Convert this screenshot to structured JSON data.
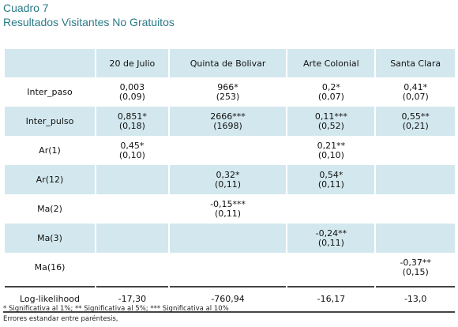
{
  "header": {
    "title": "Cuadro 7",
    "subtitle": "Resultados Visitantes No Gratuitos"
  },
  "table": {
    "columns": [
      "20 de Julio",
      "Quinta de Bolivar",
      "Arte Colonial",
      "Santa Clara"
    ],
    "rows": [
      {
        "label": "Inter_paso",
        "cells": [
          {
            "coef": "0,003",
            "se": "(0,09)"
          },
          {
            "coef": "966*",
            "se": "(253)"
          },
          {
            "coef": "0,2*",
            "se": "(0,07)"
          },
          {
            "coef": "0,41*",
            "se": "(0,07)"
          }
        ]
      },
      {
        "label": "Inter_pulso",
        "cells": [
          {
            "coef": "0,851*",
            "se": "(0,18)"
          },
          {
            "coef": "2666***",
            "se": "(1698)"
          },
          {
            "coef": "0,11***",
            "se": "(0,52)"
          },
          {
            "coef": "0,55**",
            "se": "(0,21)"
          }
        ]
      },
      {
        "label": "Ar(1)",
        "cells": [
          {
            "coef": "0,45*",
            "se": "(0,10)"
          },
          null,
          {
            "coef": "0,21**",
            "se": "(0,10)"
          },
          null
        ]
      },
      {
        "label": "Ar(12)",
        "cells": [
          null,
          {
            "coef": "0,32*",
            "se": "(0,11)"
          },
          {
            "coef": "0,54*",
            "se": "(0,11)"
          },
          null
        ]
      },
      {
        "label": "Ma(2)",
        "cells": [
          null,
          {
            "coef": "-0,15***",
            "se": "(0,11)"
          },
          null,
          null
        ]
      },
      {
        "label": "Ma(3)",
        "cells": [
          null,
          null,
          {
            "coef": "-0,24**",
            "se": "(0,11)"
          },
          null
        ]
      },
      {
        "label": "Ma(16)",
        "cells": [
          null,
          null,
          null,
          {
            "coef": "-0,37**",
            "se": "(0,15)"
          }
        ]
      }
    ],
    "loglik": {
      "label": "Log-likelihood",
      "values": [
        "-17,30",
        "-760,94",
        "-16,17",
        "-13,0"
      ]
    }
  },
  "footnotes": [
    "* Significativa al 1%; ** Significativa al 5%; *** Significativa al 10%",
    "Errores estandar entre paréntesis,"
  ]
}
